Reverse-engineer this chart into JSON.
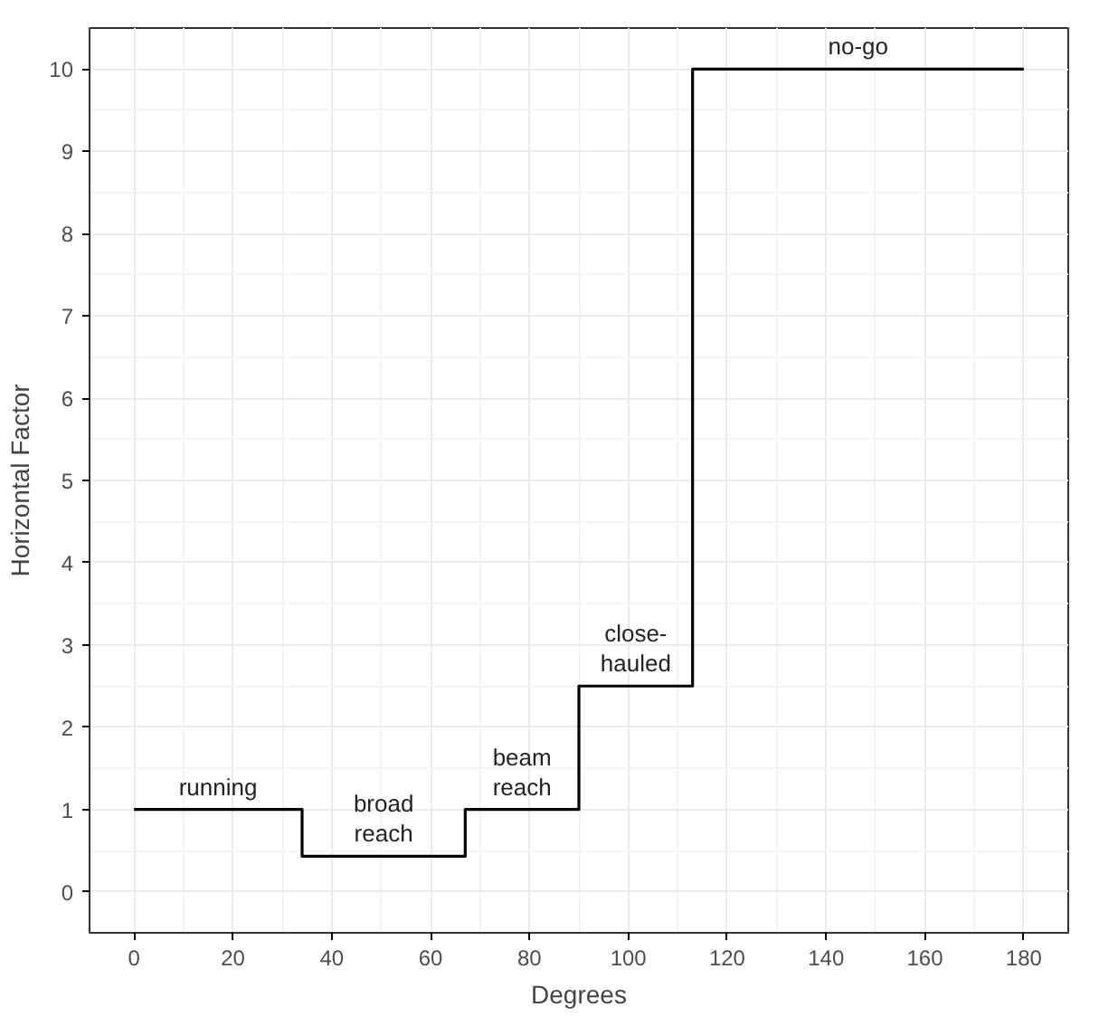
{
  "chart_data": {
    "type": "step",
    "xlabel": "Degrees",
    "ylabel": "Horizontal Factor",
    "x": [
      0,
      34,
      67,
      90,
      113,
      180
    ],
    "series": [
      {
        "color": "#000000",
        "values": [
          1,
          0.43,
          1,
          2.5,
          10,
          10
        ]
      }
    ],
    "xlim": [
      -9,
      189
    ],
    "ylim": [
      -0.5,
      10.5
    ],
    "xticks": [
      0,
      20,
      40,
      60,
      80,
      100,
      120,
      140,
      160,
      180
    ],
    "yticks": [
      0,
      1,
      2,
      3,
      4,
      5,
      6,
      7,
      8,
      9,
      10
    ],
    "grid": true,
    "annotations": [
      "running",
      "broad\nreach",
      "beam\nreach",
      "close-\nhauled",
      "no-go"
    ]
  }
}
